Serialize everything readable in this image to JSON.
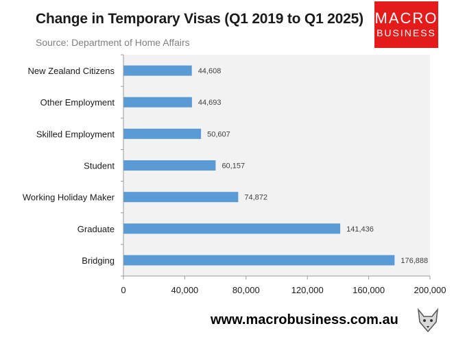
{
  "header": {
    "title": "Change in Temporary Visas (Q1 2019 to Q1 2025)",
    "subtitle": "Source: Department of Home Affairs"
  },
  "logo": {
    "line1": "MACRO",
    "line2": "BUSINESS"
  },
  "footer": {
    "url": "www.macrobusiness.com.au"
  },
  "colors": {
    "bar": "#5b9bd5",
    "plot_bg": "#f2f2f2",
    "logo_bg": "#e41b1b"
  },
  "chart_data": {
    "type": "bar",
    "orientation": "horizontal",
    "title": "Change in Temporary Visas (Q1 2019 to Q1 2025)",
    "subtitle": "Source: Department of Home Affairs",
    "categories": [
      "New Zealand Citizens",
      "Other Employment",
      "Skilled Employment",
      "Student",
      "Working Holiday Maker",
      "Graduate",
      "Bridging"
    ],
    "values": [
      44608,
      44693,
      50607,
      60157,
      74872,
      141436,
      176888
    ],
    "data_labels": [
      "44,608",
      "44,693",
      "50,607",
      "60,157",
      "74,872",
      "141,436",
      "176,888"
    ],
    "xlim": [
      0,
      200000
    ],
    "xticks": [
      0,
      40000,
      80000,
      120000,
      160000,
      200000
    ],
    "xtick_labels": [
      "0",
      "40,000",
      "80,000",
      "120,000",
      "160,000",
      "200,000"
    ],
    "xlabel": "",
    "ylabel": "",
    "grid": false,
    "legend": "none"
  }
}
